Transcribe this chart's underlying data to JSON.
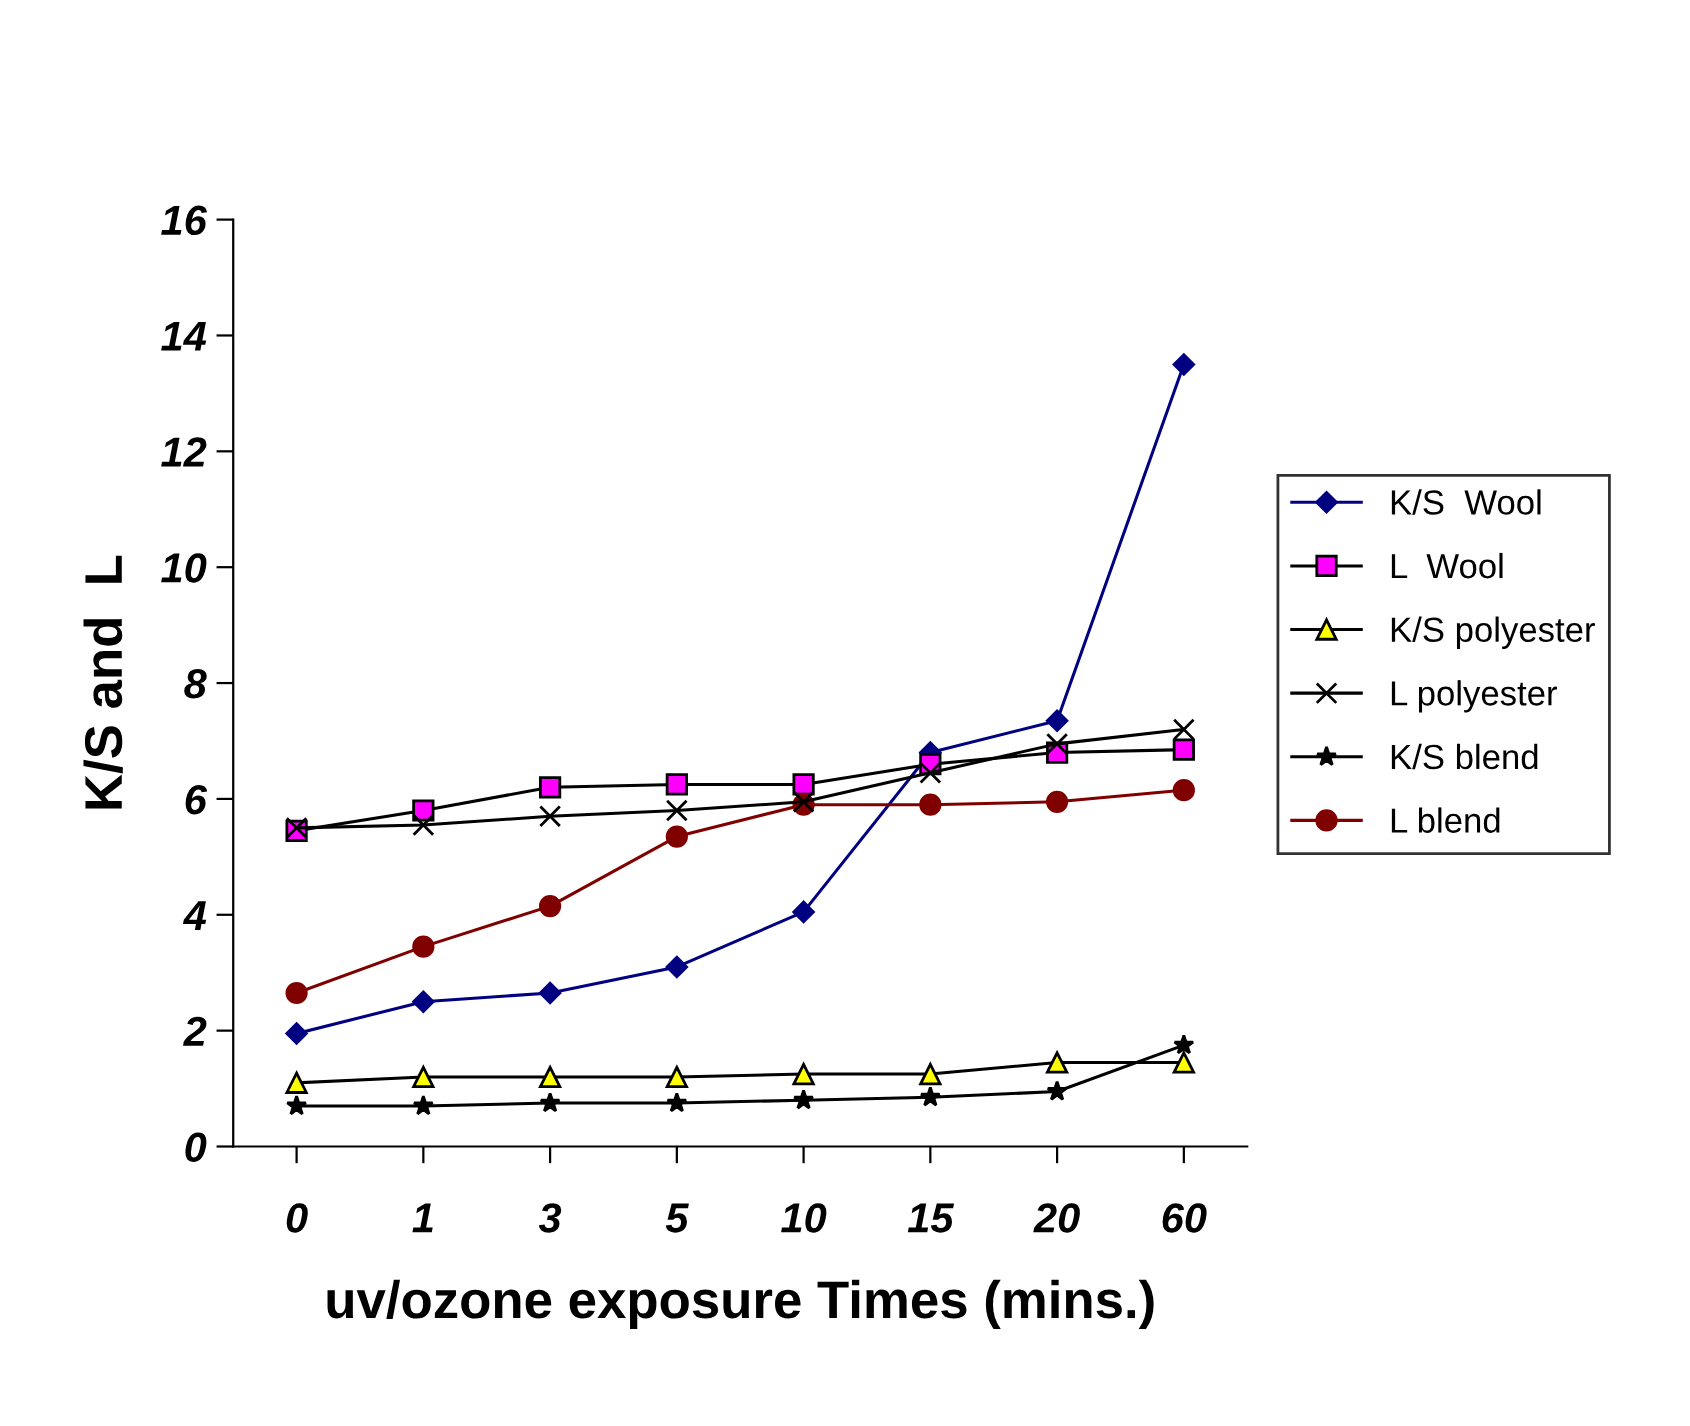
{
  "chart_data": {
    "type": "line",
    "xlabel": "uv/ozone exposure Times (mins.)",
    "ylabel": "K/S and  L",
    "categories": [
      "0",
      "1",
      "3",
      "5",
      "10",
      "15",
      "20",
      "60"
    ],
    "ylim": [
      0,
      16
    ],
    "yticks": [
      0,
      2,
      4,
      6,
      8,
      10,
      12,
      14,
      16
    ],
    "grid": false,
    "legend": "right",
    "series": [
      {
        "name": "K/S  Wool",
        "color": "#000080",
        "marker": "diamond",
        "values": [
          1.95,
          2.5,
          2.65,
          3.1,
          4.05,
          6.8,
          7.35,
          13.5
        ]
      },
      {
        "name": "L  Wool",
        "color": "#ff00ff",
        "marker": "square",
        "values": [
          5.45,
          5.8,
          6.2,
          6.25,
          6.25,
          6.6,
          6.8,
          6.85
        ]
      },
      {
        "name": "K/S polyester",
        "color": "#ffff00",
        "marker": "triangle",
        "values": [
          1.1,
          1.2,
          1.2,
          1.2,
          1.25,
          1.25,
          1.45,
          1.45
        ]
      },
      {
        "name": "L polyester",
        "color": "#000000",
        "marker": "cross",
        "values": [
          5.5,
          5.55,
          5.7,
          5.8,
          5.95,
          6.45,
          6.95,
          7.2
        ]
      },
      {
        "name": "K/S blend",
        "color": "#000000",
        "marker": "star",
        "values": [
          0.7,
          0.7,
          0.75,
          0.75,
          0.8,
          0.85,
          0.95,
          1.75
        ]
      },
      {
        "name": "L blend",
        "color": "#800000",
        "marker": "circle",
        "values": [
          2.65,
          3.45,
          4.15,
          5.35,
          5.9,
          5.9,
          5.95,
          6.15
        ]
      }
    ]
  }
}
